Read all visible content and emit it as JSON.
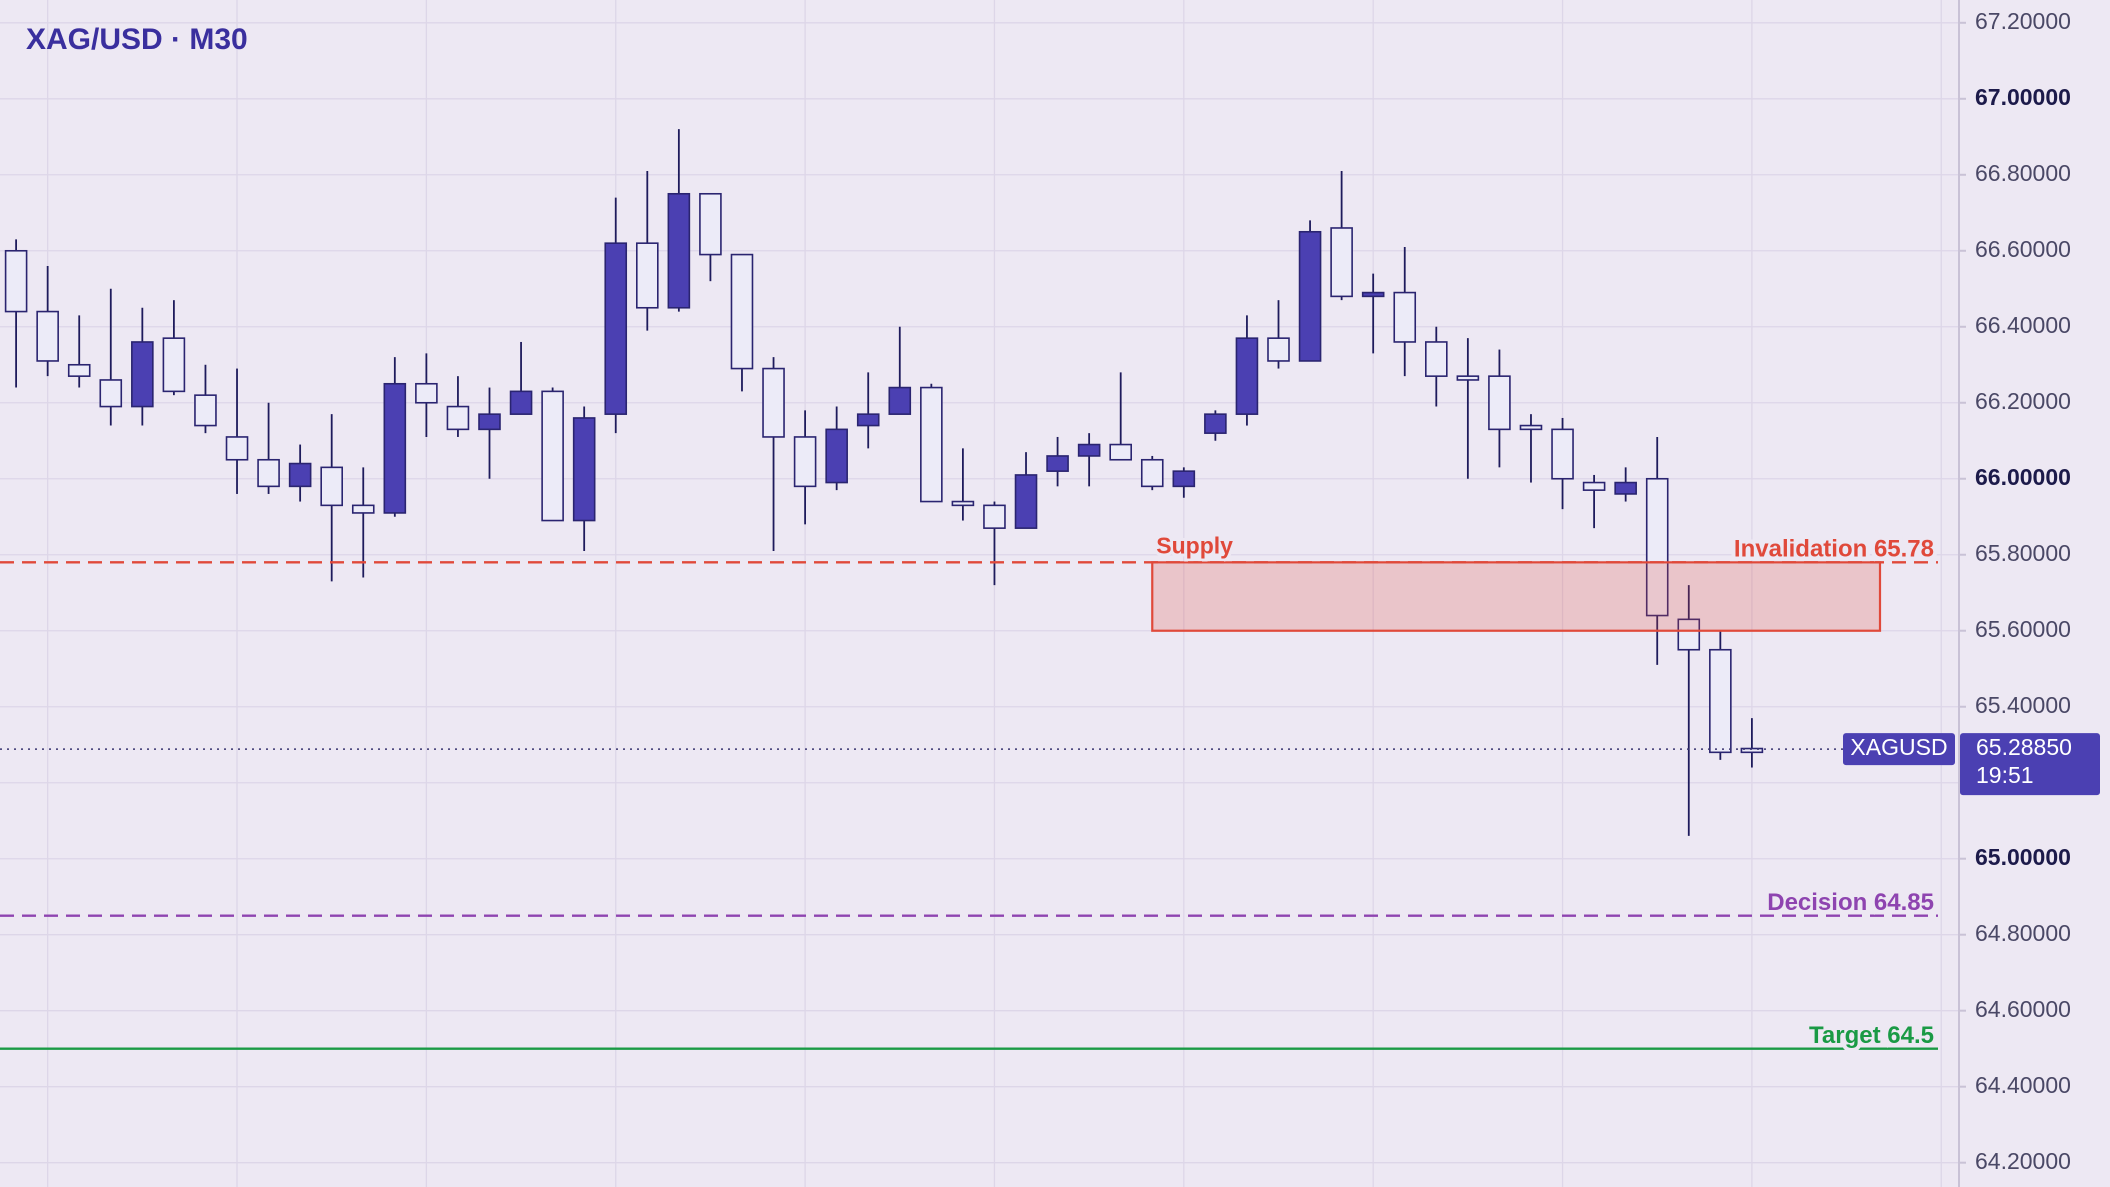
{
  "chart_data": {
    "type": "candlestick",
    "title": "XAG/USD · M30",
    "series": [
      {
        "name": "XAGUSD",
        "open": [
          66.6,
          66.44,
          66.3,
          66.26,
          66.19,
          66.37,
          66.22,
          66.11,
          66.05,
          65.98,
          66.03,
          65.93,
          65.91,
          66.25,
          66.19,
          66.13,
          66.17,
          66.23,
          65.89,
          66.17,
          66.62,
          66.45,
          66.75,
          66.59,
          66.29,
          66.11,
          65.99,
          66.14,
          66.17,
          66.24,
          65.94,
          65.93,
          65.87,
          66.02,
          66.06,
          66.09,
          66.05,
          65.98,
          66.12,
          66.17,
          66.37,
          66.31,
          66.66,
          66.48,
          66.49,
          66.36,
          66.27,
          66.27,
          66.14,
          66.13,
          65.99,
          65.96,
          66.0,
          65.63,
          65.55,
          65.29
        ],
        "high": [
          66.63,
          66.56,
          66.43,
          66.5,
          66.45,
          66.47,
          66.3,
          66.29,
          66.2,
          66.09,
          66.17,
          66.03,
          66.32,
          66.33,
          66.27,
          66.24,
          66.36,
          66.24,
          66.19,
          66.74,
          66.81,
          66.92,
          66.75,
          66.59,
          66.32,
          66.18,
          66.19,
          66.28,
          66.4,
          66.25,
          66.08,
          65.94,
          66.07,
          66.11,
          66.12,
          66.28,
          66.06,
          66.03,
          66.18,
          66.43,
          66.47,
          66.68,
          66.81,
          66.54,
          66.61,
          66.4,
          66.37,
          66.34,
          66.17,
          66.16,
          66.01,
          66.03,
          66.11,
          65.72,
          65.6,
          65.37
        ],
        "low": [
          66.24,
          66.27,
          66.24,
          66.14,
          66.14,
          66.22,
          66.12,
          65.96,
          65.96,
          65.94,
          65.73,
          65.74,
          65.9,
          66.11,
          66.11,
          66.0,
          66.17,
          65.89,
          65.81,
          66.12,
          66.39,
          66.44,
          66.52,
          66.23,
          65.81,
          65.88,
          65.97,
          66.08,
          66.17,
          65.94,
          65.89,
          65.72,
          65.87,
          65.98,
          65.98,
          66.05,
          65.97,
          65.95,
          66.1,
          66.14,
          66.29,
          66.31,
          66.47,
          66.33,
          66.27,
          66.19,
          66.0,
          66.03,
          65.99,
          65.92,
          65.87,
          65.94,
          65.51,
          65.06,
          65.26,
          65.24
        ],
        "close": [
          66.44,
          66.31,
          66.27,
          66.19,
          66.36,
          66.23,
          66.14,
          66.05,
          65.98,
          66.04,
          65.93,
          65.91,
          66.25,
          66.2,
          66.13,
          66.17,
          66.23,
          65.89,
          66.16,
          66.62,
          66.45,
          66.75,
          66.59,
          66.29,
          66.11,
          65.98,
          66.13,
          66.17,
          66.24,
          65.94,
          65.93,
          65.87,
          66.01,
          66.06,
          66.09,
          66.05,
          65.98,
          66.02,
          66.17,
          66.37,
          66.31,
          66.65,
          66.48,
          66.49,
          66.36,
          66.27,
          66.26,
          66.13,
          66.13,
          66.0,
          65.97,
          65.99,
          65.64,
          65.55,
          65.28,
          65.28
        ]
      }
    ],
    "ylim": [
      64.136,
      67.26
    ],
    "yticks": [
      {
        "value": 64.2,
        "label": "64.20000"
      },
      {
        "value": 64.4,
        "label": "64.40000"
      },
      {
        "value": 64.6,
        "label": "64.60000"
      },
      {
        "value": 64.8,
        "label": "64.80000"
      },
      {
        "value": 65.0,
        "label": "65.00000"
      },
      {
        "value": 65.2,
        "label": "65.20000"
      },
      {
        "value": 65.4,
        "label": "65.40000"
      },
      {
        "value": 65.6,
        "label": "65.60000"
      },
      {
        "value": 65.8,
        "label": "65.80000"
      },
      {
        "value": 66.0,
        "label": "66.00000"
      },
      {
        "value": 66.2,
        "label": "66.20000"
      },
      {
        "value": 66.4,
        "label": "66.40000"
      },
      {
        "value": 66.6,
        "label": "66.60000"
      },
      {
        "value": 66.8,
        "label": "66.80000"
      },
      {
        "value": 67.0,
        "label": "67.00000"
      },
      {
        "value": 67.2,
        "label": "67.20000"
      }
    ],
    "last_price": {
      "value": 65.2885,
      "label": "65.28850"
    },
    "countdown": "19:51",
    "zone": {
      "label": "Supply",
      "low": 65.6,
      "high": 65.78,
      "color": "#e0493a"
    },
    "levels": [
      {
        "label": "Invalidation 65.78",
        "value": 65.78,
        "color": "#e0493a",
        "style": "dashed"
      },
      {
        "label": "Decision 64.85",
        "value": 64.85,
        "color": "#8e44b0",
        "style": "dashed"
      },
      {
        "label": "Target 64.5",
        "value": 64.5,
        "color": "#1a9a45",
        "style": "solid"
      }
    ],
    "up_color": "#4b40b2",
    "down_color": "#ecebf8",
    "grid": true
  }
}
